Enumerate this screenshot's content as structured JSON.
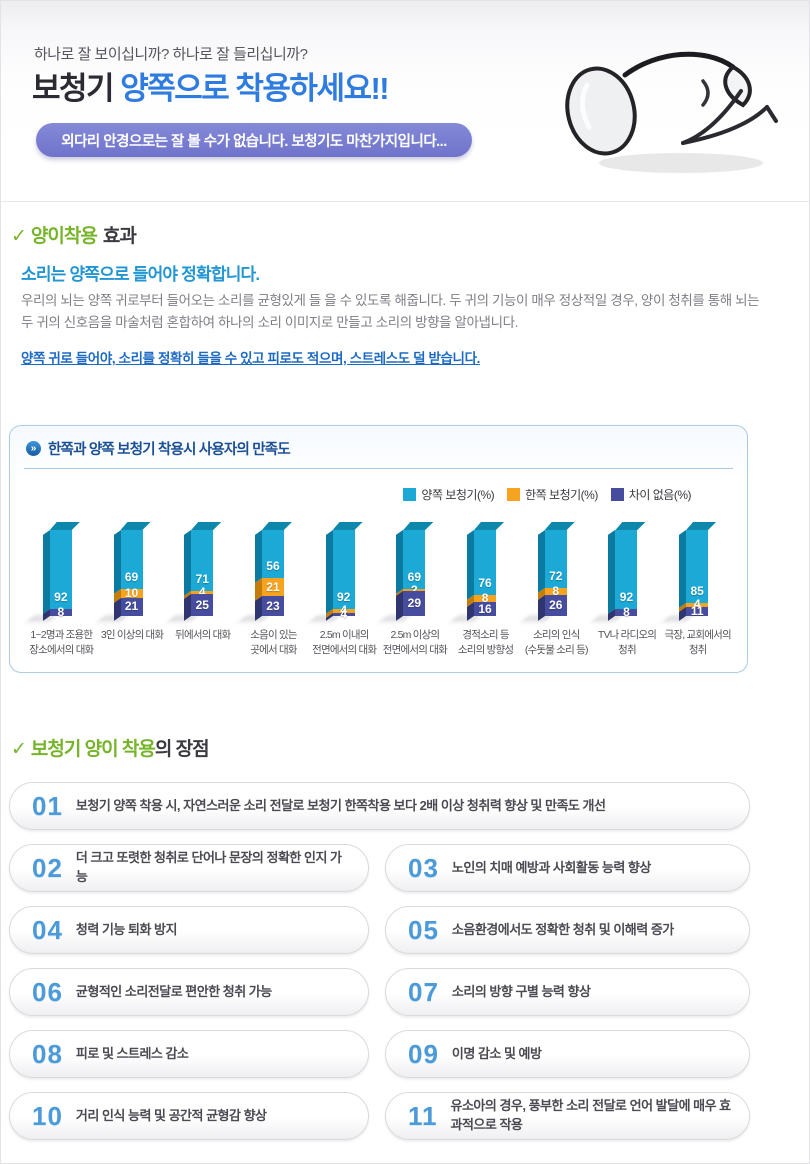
{
  "header": {
    "tagline": "하나로 잘 보이십니까? 하나로 잘 들리십니까?",
    "title_dark": "보청기 ",
    "title_blue": "양쪽으로 착용하세요!!",
    "banner": "외다리 안경으로는 잘 볼 수가 없습니다. 보청기도 마찬가지입니다..."
  },
  "effect": {
    "check": "✓",
    "heading_green": "양이착용",
    "heading_dark": "효과",
    "subtitle": "소리는 양쪽으로 들어야 정확합니다.",
    "body": "우리의 뇌는 양쪽 귀로부터 들어오는 소리를 균형있게 들 을 수 있도록 해줍니다. 두 귀의 기능이 매우 정상적일 경우, 양이 청취를 통해 뇌는 두 귀의 신호음을 마술처럼 혼합하여 하나의 소리 이미지로 만들고 소리의 방향을 알아냅니다.",
    "highlight": "양쪽 귀로 들어야, 소리를 정확히 들을 수 있고 피로도 적으며, 스트레스도 덜 받습니다."
  },
  "chart": {
    "icon": "»"
  },
  "chart_data": {
    "type": "bar",
    "stacked": true,
    "title": "한쪽과 양쪽 보청기 착용시 사용자의 만족도",
    "legend_position": "top-right",
    "value_labels": true,
    "ylim": [
      0,
      100
    ],
    "categories": [
      "1~2명과 조용한 장소에서의 대화",
      "3인 이상의 대화",
      "뒤에서의 대화",
      "소음이 있는 곳에서 대화",
      "2.5m 이내의 전면에서의 대화",
      "2.5m 이상의 전면에서의 대화",
      "경적소리 등 소리의 방향성",
      "소리의 인식 (수돗물 소리 등)",
      "TV나 라디오의 청취",
      "극장, 교회에서의 청취"
    ],
    "category_lines": [
      [
        "1~2명과 조용한",
        "장소에서의 대화"
      ],
      [
        "3인 이상의 대화"
      ],
      [
        "뒤에서의 대화"
      ],
      [
        "소음이 있는",
        "곳에서 대화"
      ],
      [
        "2.5m 이내의",
        "전면에서의 대화"
      ],
      [
        "2.5m 이상의",
        "전면에서의 대화"
      ],
      [
        "경적소리 등",
        "소리의 방향성"
      ],
      [
        "소리의 인식",
        "(수돗물 소리 등)"
      ],
      [
        "TV나 라디오의",
        "청취"
      ],
      [
        "극장, 교회에서의",
        "청취"
      ]
    ],
    "series": [
      {
        "name": "양쪽 보청기(%)",
        "color": "#1ca9d6",
        "values": [
          92,
          69,
          71,
          56,
          92,
          69,
          76,
          72,
          92,
          85
        ]
      },
      {
        "name": "한쪽 보청기(%)",
        "color": "#f6a41f",
        "values": [
          0,
          10,
          4,
          21,
          4,
          2,
          8,
          8,
          0,
          4
        ]
      },
      {
        "name": "차이 없음(%)",
        "color": "#474d9e",
        "values": [
          8,
          21,
          25,
          23,
          4,
          29,
          16,
          26,
          8,
          11
        ]
      }
    ]
  },
  "advantages": {
    "check": "✓",
    "heading_green": "보청기 양이 착용",
    "heading_dark": "의 장점",
    "items": [
      {
        "num": "01",
        "full": true,
        "text": "보청기 양쪽 착용 시, 자연스러운 소리 전달로 보청기 한쪽착용 보다 2배 이상 청취력 향상 및 만족도 개선"
      },
      {
        "num": "02",
        "full": false,
        "text": "더 크고 또렷한 청취로 단어나 문장의 정확한 인지 가능"
      },
      {
        "num": "03",
        "full": false,
        "text": "노인의 치매 예방과 사회활동 능력 향상"
      },
      {
        "num": "04",
        "full": false,
        "text": "청력 기능 퇴화 방지"
      },
      {
        "num": "05",
        "full": false,
        "text": "소음환경에서도 정확한 청취 및 이해력 증가"
      },
      {
        "num": "06",
        "full": false,
        "text": "균형적인 소리전달로 편안한 청취 가능"
      },
      {
        "num": "07",
        "full": false,
        "text": "소리의 방향 구별 능력 향상"
      },
      {
        "num": "08",
        "full": false,
        "text": "피로 및 스트레스 감소"
      },
      {
        "num": "09",
        "full": false,
        "text": "이명 감소 및 예방"
      },
      {
        "num": "10",
        "full": false,
        "text": "거리 인식 능력 및 공간적 균형감 향상"
      },
      {
        "num": "11",
        "full": false,
        "text": "유소아의 경우, 풍부한 소리 전달로 언어 발달에 매우 효과적으로 작용"
      }
    ]
  },
  "colors": {
    "title_blue": "#2e7ce0",
    "banner_pill": "#7479cf",
    "section_green": "#76b42a",
    "subtitle_blue": "#2296d2",
    "highlight_blue": "#1d6ac4",
    "panel_border": "#abcbe6",
    "panel_title": "#1c4f93",
    "advantage_number": "#4d9ad8"
  }
}
